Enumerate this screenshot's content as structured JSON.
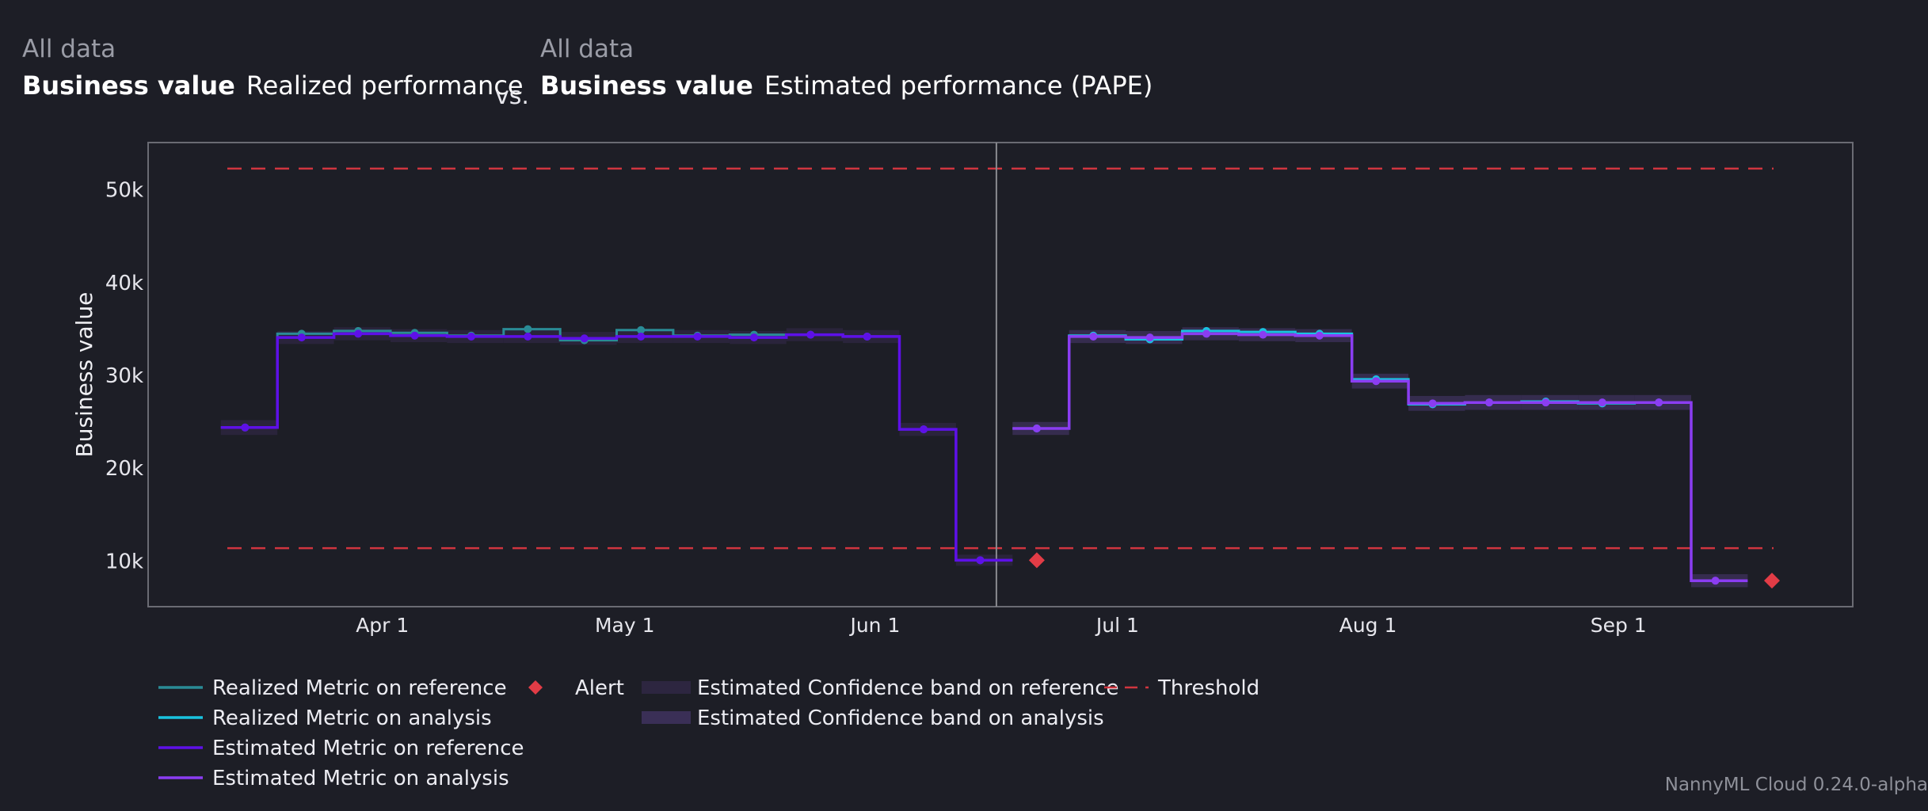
{
  "header": {
    "left": {
      "subtitle": "All data",
      "metric": "Business value",
      "label": "Realized performance"
    },
    "vs": "vs.",
    "right": {
      "subtitle": "All data",
      "metric": "Business value",
      "label": "Estimated performance (PAPE)"
    }
  },
  "footer": {
    "version": "NannyML Cloud 0.24.0-alpha"
  },
  "colors": {
    "background": "#1d1e26",
    "realized_reference": "#2a8b96",
    "realized_analysis": "#19c3df",
    "estimated_reference": "#5e10e8",
    "estimated_analysis": "#8b3df2",
    "band_reference": "#2d2640",
    "band_analysis": "#3a2f56",
    "alert": "#e23c46",
    "threshold": "#d0353f",
    "divider": "#8a8a90"
  },
  "chart_data": {
    "type": "line",
    "step": true,
    "ylabel": "Business value",
    "xlabel": "",
    "xticks": [
      "Apr 1",
      "May 1",
      "Jun 1",
      "Jul 1",
      "Aug 1",
      "Sep 1"
    ],
    "xtick_dates": [
      "2024-04-01",
      "2024-05-01",
      "2024-06-01",
      "2024-07-01",
      "2024-08-01",
      "2024-09-01"
    ],
    "yticks": [
      10000,
      20000,
      30000,
      40000,
      50000
    ],
    "ytick_labels": [
      "10k",
      "20k",
      "30k",
      "40k",
      "50k"
    ],
    "ylim": [
      5000,
      55000
    ],
    "xlim": [
      "2024-03-03",
      "2024-09-30"
    ],
    "grid": false,
    "legend_position": "bottom",
    "thresholds": {
      "upper": 52200,
      "lower": 11300
    },
    "reference_end": "2024-06-16",
    "series": [
      {
        "name": "Realized Metric on reference",
        "period": "reference",
        "kind": "realized",
        "x": [
          "2024-03-12",
          "2024-03-19",
          "2024-03-26",
          "2024-04-02",
          "2024-04-09",
          "2024-04-16",
          "2024-04-23",
          "2024-04-30",
          "2024-05-07",
          "2024-05-14",
          "2024-05-21",
          "2024-05-28",
          "2024-06-04",
          "2024-06-11"
        ],
        "y": [
          24300,
          34400,
          34700,
          34500,
          34200,
          34900,
          33700,
          34800,
          34200,
          34300,
          34300,
          34100,
          24100,
          10000
        ]
      },
      {
        "name": "Realized Metric on analysis",
        "period": "analysis",
        "kind": "realized",
        "x": [
          "2024-06-18",
          "2024-06-25",
          "2024-07-02",
          "2024-07-09",
          "2024-07-16",
          "2024-07-23",
          "2024-07-30",
          "2024-08-06",
          "2024-08-13",
          "2024-08-20",
          "2024-08-27",
          "2024-09-03"
        ],
        "y": [
          24200,
          34200,
          33800,
          34700,
          34600,
          34400,
          29500,
          26800,
          27000,
          27100,
          26900,
          27000
        ]
      },
      {
        "name": "Estimated Metric on reference",
        "period": "reference",
        "kind": "estimated",
        "x": [
          "2024-03-12",
          "2024-03-19",
          "2024-03-26",
          "2024-04-02",
          "2024-04-09",
          "2024-04-16",
          "2024-04-23",
          "2024-04-30",
          "2024-05-07",
          "2024-05-14",
          "2024-05-21",
          "2024-05-28",
          "2024-06-04",
          "2024-06-11"
        ],
        "y": [
          24300,
          34000,
          34400,
          34200,
          34100,
          34100,
          33900,
          34100,
          34100,
          34000,
          34300,
          34100,
          24100,
          10000
        ]
      },
      {
        "name": "Estimated Metric on analysis",
        "period": "analysis",
        "kind": "estimated",
        "x": [
          "2024-06-18",
          "2024-06-25",
          "2024-07-02",
          "2024-07-09",
          "2024-07-16",
          "2024-07-23",
          "2024-07-30",
          "2024-08-06",
          "2024-08-13",
          "2024-08-20",
          "2024-08-27",
          "2024-09-03",
          "2024-09-10"
        ],
        "y": [
          24200,
          34100,
          34000,
          34400,
          34300,
          34200,
          29300,
          26900,
          27000,
          27000,
          27000,
          27000,
          7800
        ]
      }
    ],
    "bands": [
      {
        "name": "Estimated Confidence band on reference",
        "x": [
          "2024-03-12",
          "2024-03-19",
          "2024-03-26",
          "2024-04-02",
          "2024-04-09",
          "2024-04-16",
          "2024-04-23",
          "2024-04-30",
          "2024-05-07",
          "2024-05-14",
          "2024-05-21",
          "2024-05-28",
          "2024-06-04",
          "2024-06-11"
        ],
        "lower": [
          23500,
          33300,
          33700,
          33500,
          33400,
          33400,
          33200,
          33400,
          33400,
          33300,
          33600,
          33400,
          23400,
          9400
        ],
        "upper": [
          25100,
          34700,
          35100,
          34900,
          34800,
          34800,
          34600,
          34800,
          34800,
          34700,
          35000,
          34800,
          24800,
          10600
        ]
      },
      {
        "name": "Estimated Confidence band on analysis",
        "x": [
          "2024-06-18",
          "2024-06-25",
          "2024-07-02",
          "2024-07-09",
          "2024-07-16",
          "2024-07-23",
          "2024-07-30",
          "2024-08-06",
          "2024-08-13",
          "2024-08-20",
          "2024-08-27",
          "2024-09-03",
          "2024-09-10"
        ],
        "lower": [
          23500,
          33400,
          33300,
          33700,
          33600,
          33500,
          28500,
          26100,
          26200,
          26200,
          26200,
          26200,
          7100
        ],
        "upper": [
          24900,
          34800,
          34700,
          35100,
          35000,
          34900,
          30100,
          27700,
          27800,
          27800,
          27800,
          27800,
          8500
        ]
      }
    ],
    "alerts": [
      {
        "x": "2024-06-18",
        "y": 10000
      },
      {
        "x": "2024-09-17",
        "y": 7800
      }
    ],
    "legend": [
      "Realized Metric on reference",
      "Realized Metric on analysis",
      "Estimated Metric on reference",
      "Estimated Metric on analysis",
      "Alert",
      "Estimated Confidence band on reference",
      "Estimated Confidence band on analysis",
      "Threshold"
    ]
  }
}
